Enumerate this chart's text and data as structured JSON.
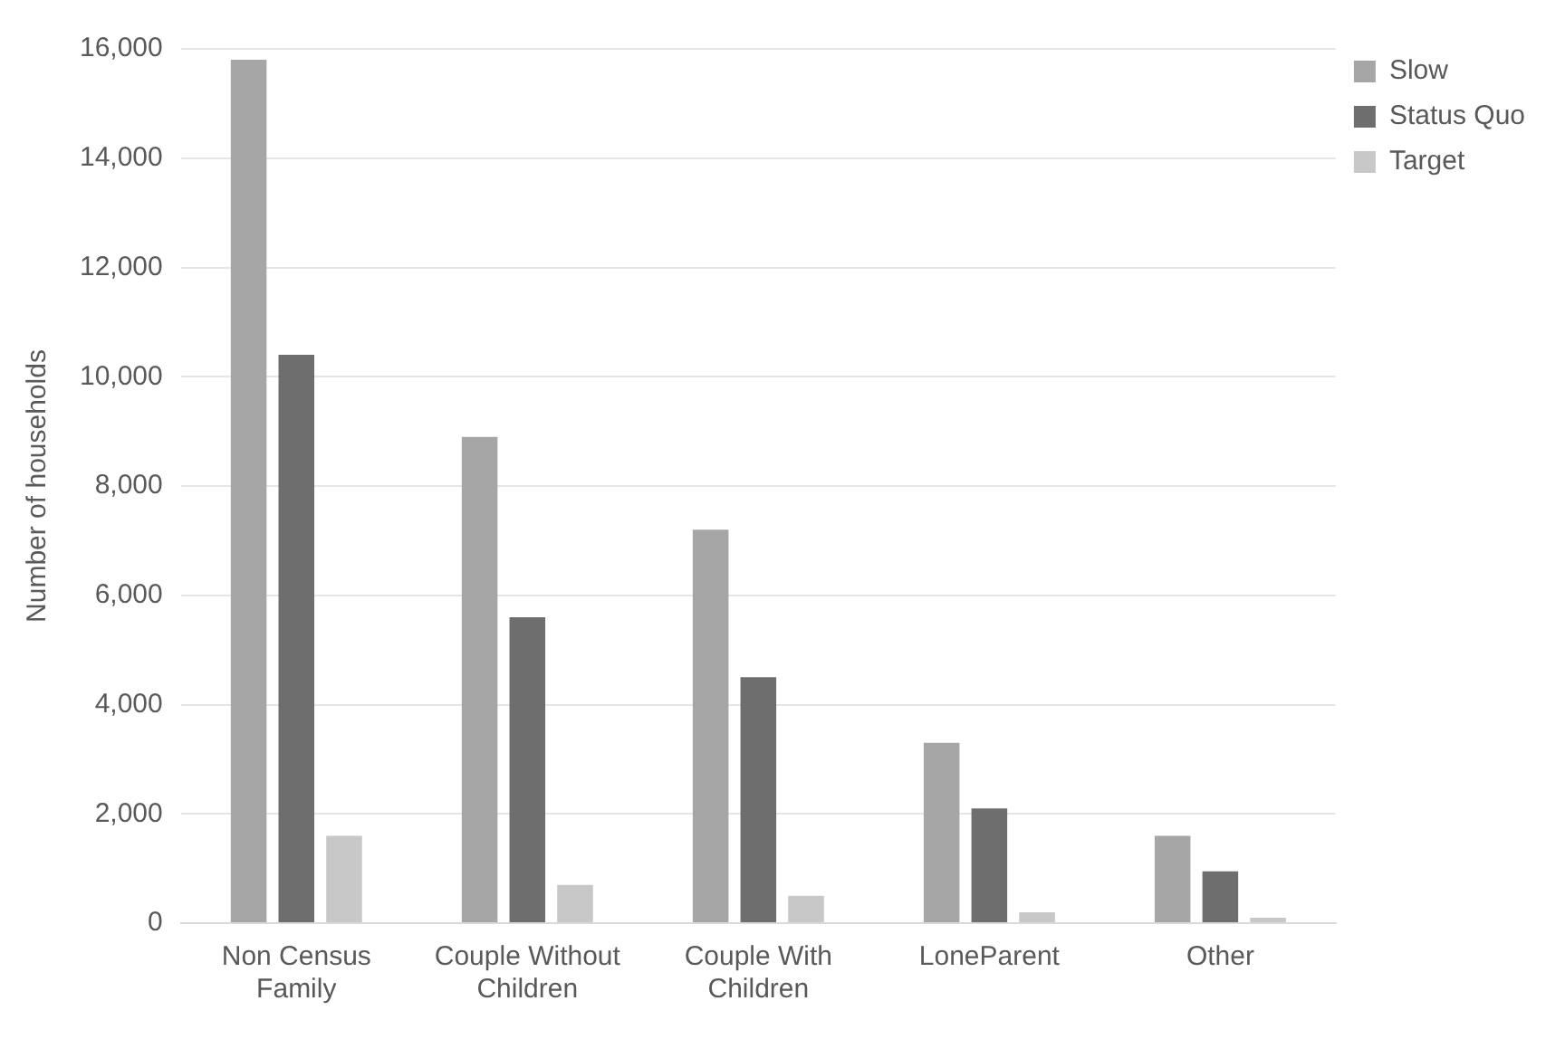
{
  "chart_data": {
    "type": "bar",
    "ylabel": "Number of households",
    "categories": [
      "Non Census Family",
      "Couple Without Children",
      "Couple With Children",
      "LoneParent",
      "Other"
    ],
    "series": [
      {
        "name": "Slow",
        "color": "#a6a6a6",
        "values": [
          15800,
          8900,
          7200,
          3300,
          1600
        ]
      },
      {
        "name": "Status Quo",
        "color": "#6e6e6e",
        "values": [
          10400,
          5600,
          4500,
          2100,
          950
        ]
      },
      {
        "name": "Target",
        "color": "#c8c8c8",
        "values": [
          1600,
          700,
          500,
          200,
          100
        ]
      }
    ],
    "ylim": [
      0,
      16000
    ],
    "yticks": [
      0,
      {
        "value": 2000,
        "label": "2,000"
      },
      {
        "value": 4000,
        "label": "4,000"
      },
      {
        "value": 6000,
        "label": "6,000"
      },
      {
        "value": 8000,
        "label": "8,000"
      },
      {
        "value": 10000,
        "label": "10,000"
      },
      {
        "value": 12000,
        "label": "12,000"
      },
      {
        "value": 14000,
        "label": "14,000"
      },
      {
        "value": 16000,
        "label": "16,000"
      }
    ],
    "grid": "y",
    "legend": "top right"
  }
}
